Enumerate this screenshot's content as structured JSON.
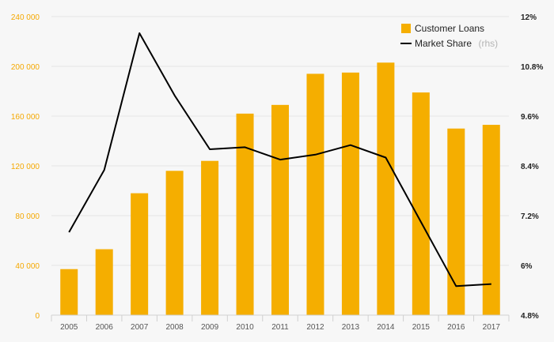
{
  "chart_data": {
    "type": "bar+line",
    "categories": [
      "2005",
      "2006",
      "2007",
      "2008",
      "2009",
      "2010",
      "2011",
      "2012",
      "2013",
      "2014",
      "2015",
      "2016",
      "2017"
    ],
    "series": [
      {
        "name": "Customer Loans",
        "type": "bar",
        "axis": "left",
        "color": "#f5ae00",
        "values": [
          37000,
          53000,
          98000,
          116000,
          124000,
          162000,
          169000,
          194000,
          195000,
          203000,
          179000,
          150000,
          153000
        ]
      },
      {
        "name": "Market Share",
        "note": "(rhs)",
        "type": "line",
        "axis": "right",
        "color": "#000000",
        "values": [
          6.8,
          8.3,
          11.6,
          10.1,
          8.8,
          8.85,
          8.55,
          8.67,
          8.9,
          8.6,
          7.05,
          5.5,
          5.55
        ]
      }
    ],
    "yleft": {
      "lim": [
        0,
        240000
      ],
      "ticks": [
        0,
        40000,
        80000,
        120000,
        160000,
        200000,
        240000
      ],
      "tick_labels": [
        "0",
        "40 000",
        "80 000",
        "120 000",
        "160 000",
        "200 000",
        "240 000"
      ]
    },
    "yright": {
      "lim": [
        4.8,
        12
      ],
      "ticks": [
        4.8,
        6,
        7.2,
        8.4,
        9.6,
        10.8,
        12
      ],
      "tick_labels": [
        "4.8%",
        "6%",
        "7.2%",
        "8.4%",
        "9.6%",
        "10.8%",
        "12%"
      ]
    },
    "title": "",
    "xlabel": "",
    "ylabel": "",
    "grid": true,
    "legend_position": "top-right"
  }
}
